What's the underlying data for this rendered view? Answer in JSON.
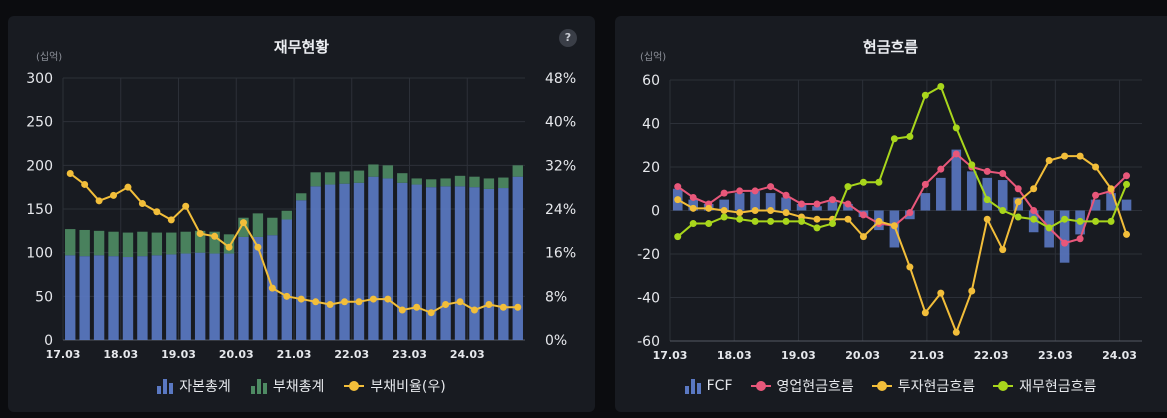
{
  "panels": [
    {
      "title": "재무현황",
      "unit": "(십억)",
      "help": "?",
      "legend": [
        {
          "label": "자본총계",
          "kind": "bar",
          "color": "#5a78c2"
        },
        {
          "label": "부채총계",
          "kind": "bar",
          "color": "#4e8a63"
        },
        {
          "label": "부채비율(우)",
          "kind": "line",
          "color": "#f2be3a"
        }
      ]
    },
    {
      "title": "현금흐름",
      "unit": "(십억)",
      "legend": [
        {
          "label": "FCF",
          "kind": "bar",
          "color": "#5a78c2"
        },
        {
          "label": "영업현금흐름",
          "kind": "line",
          "color": "#e8577a"
        },
        {
          "label": "투자현금흐름",
          "kind": "line",
          "color": "#f2be3a"
        },
        {
          "label": "재무현금흐름",
          "kind": "line",
          "color": "#a8d61c"
        }
      ]
    }
  ],
  "chart_data": [
    {
      "type": "bar",
      "stacked": true,
      "title": "재무현황",
      "xticks": [
        "17.03",
        "18.03",
        "19.03",
        "20.03",
        "21.03",
        "22.03",
        "23.03",
        "24.03"
      ],
      "ylim_left": [
        0,
        300
      ],
      "yticks_left": [
        0,
        50,
        100,
        150,
        200,
        250,
        300
      ],
      "ylim_right": [
        0,
        48
      ],
      "yticks_right": [
        "0%",
        "8%",
        "16%",
        "24%",
        "32%",
        "40%",
        "48%"
      ],
      "series": [
        {
          "name": "자본총계",
          "type": "bar",
          "values": [
            97,
            96,
            97,
            96,
            95,
            96,
            97,
            98,
            99,
            100,
            99,
            99,
            118,
            118,
            120,
            138,
            160,
            176,
            178,
            179,
            180,
            187,
            185,
            180,
            178,
            175,
            176,
            176,
            175,
            173,
            174,
            187
          ]
        },
        {
          "name": "부채총계",
          "type": "bar",
          "values": [
            30,
            30,
            28,
            28,
            28,
            28,
            26,
            25,
            25,
            25,
            25,
            22,
            22,
            27,
            20,
            10,
            8,
            16,
            14,
            14,
            14,
            14,
            15,
            11,
            7,
            9,
            9,
            12,
            12,
            12,
            12,
            13
          ]
        },
        {
          "name": "부채비율(우)",
          "type": "line",
          "axis": "right",
          "values": [
            30.5,
            28.5,
            25.5,
            26.5,
            28.0,
            25.0,
            23.5,
            22.0,
            24.5,
            19.5,
            19.0,
            17.0,
            21.5,
            17.0,
            9.5,
            8.0,
            7.5,
            7.0,
            6.5,
            7.0,
            7.0,
            7.5,
            7.5,
            5.5,
            6.0,
            5.0,
            6.5,
            7.0,
            5.5,
            6.5,
            6.0,
            6.0
          ]
        }
      ]
    },
    {
      "type": "bar",
      "title": "현금흐름",
      "xticks": [
        "17.03",
        "18.03",
        "19.03",
        "20.03",
        "21.03",
        "22.03",
        "23.03",
        "24.03"
      ],
      "ylim": [
        -60,
        60
      ],
      "yticks": [
        -60,
        -40,
        -20,
        0,
        20,
        40,
        60
      ],
      "series": [
        {
          "name": "FCF",
          "type": "bar",
          "values": [
            10,
            5,
            3,
            5,
            8,
            9,
            8,
            6,
            3,
            2,
            4,
            3,
            -3,
            -9,
            -17,
            -4,
            8,
            15,
            28,
            18,
            15,
            14,
            6,
            -10,
            -17,
            -24,
            -11,
            5,
            8,
            5
          ]
        },
        {
          "name": "영업현금흐름",
          "type": "line",
          "values": [
            11,
            6,
            3,
            8,
            9,
            9,
            11,
            7,
            3,
            3,
            5,
            3,
            -2,
            -6,
            -7,
            -1,
            12,
            19,
            26,
            20,
            18,
            17,
            10,
            0,
            -8,
            -15,
            -13,
            7,
            9,
            16
          ]
        },
        {
          "name": "투자현금흐름",
          "type": "line",
          "values": [
            5,
            1,
            1,
            0,
            -1,
            0,
            0,
            -1,
            -3,
            -4,
            -4,
            -4,
            -12,
            -5,
            -7,
            -26,
            -47,
            -38,
            -56,
            -37,
            -4,
            -18,
            4,
            10,
            23,
            25,
            25,
            20,
            10,
            -11
          ]
        },
        {
          "name": "재무현금흐름",
          "type": "line",
          "values": [
            -12,
            -6,
            -6,
            -3,
            -4,
            -5,
            -5,
            -5,
            -5,
            -8,
            -6,
            11,
            13,
            13,
            33,
            34,
            53,
            57,
            38,
            21,
            5,
            0,
            -3,
            -4,
            -8,
            -4,
            -5,
            -5,
            -5,
            12
          ]
        }
      ]
    }
  ]
}
